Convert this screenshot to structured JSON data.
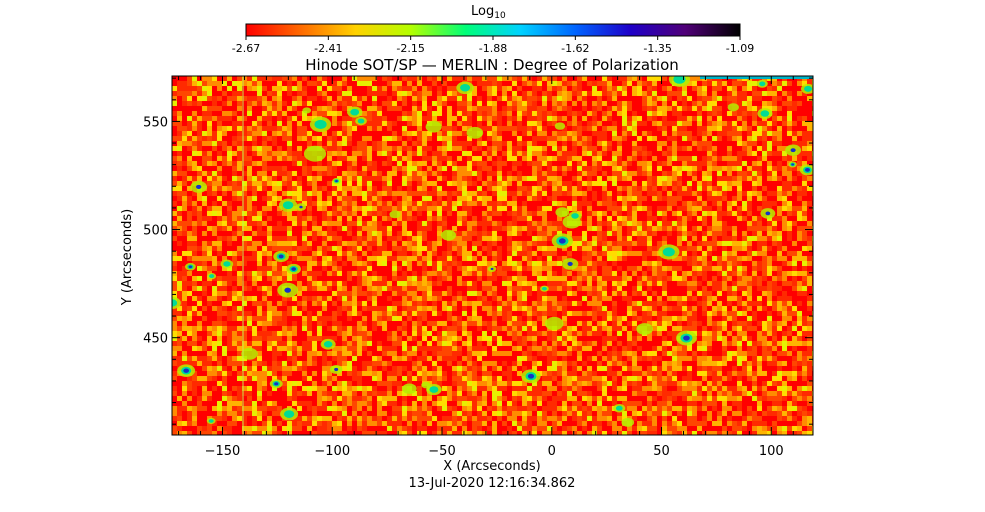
{
  "chart_data": {
    "type": "heatmap",
    "title": "Hinode SOT/SP — MERLIN : Degree of Polarization",
    "xlabel": "X (Arcseconds)",
    "ylabel": "Y (Arcseconds)",
    "xlim": [
      -173,
      119
    ],
    "ylim": [
      405,
      571
    ],
    "x_ticks": [
      -150,
      -100,
      -50,
      0,
      50,
      100
    ],
    "y_ticks": [
      450,
      500,
      550
    ],
    "colorbar": {
      "label_base": "Log",
      "label_sub": "10",
      "range": [
        -2.67,
        -1.09
      ],
      "ticks": [
        "-2.67",
        "-2.41",
        "-2.15",
        "-1.88",
        "-1.62",
        "-1.35",
        "-1.09"
      ],
      "colors": [
        "#ff0000",
        "#ff6a00",
        "#ffd200",
        "#b4ff00",
        "#00ff78",
        "#00d2ff",
        "#0064ff",
        "#1e00c8",
        "#500078",
        "#000000"
      ]
    },
    "timestamp": "13-Jul-2020 12:16:34.862",
    "grid": false
  }
}
